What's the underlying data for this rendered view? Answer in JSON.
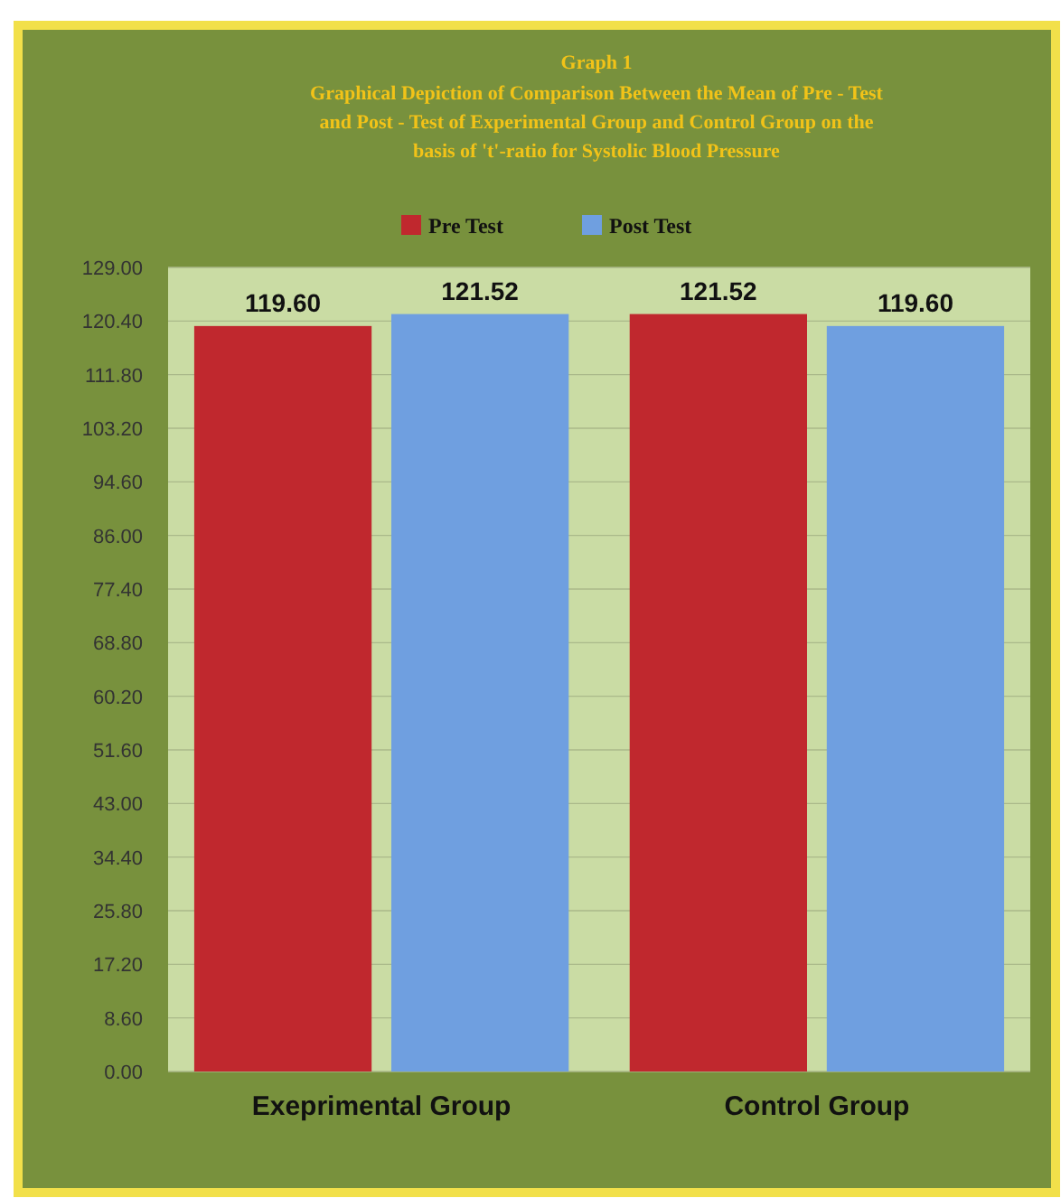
{
  "chart_data": {
    "type": "bar",
    "title": "Graph 1",
    "subtitle": "Graphical Depiction of Comparison Between the Mean of Pre - Test and Post - Test of Experimental Group and Control Group on the basis of 't'-ratio for Systolic Blood Pressure",
    "categories": [
      "Exeprimental Group",
      "Control Group"
    ],
    "series": [
      {
        "name": "Pre Test",
        "color": "#c0282e",
        "values": [
          119.6,
          121.52
        ],
        "value_labels": [
          "119.60",
          "121.52"
        ]
      },
      {
        "name": "Post Test",
        "color": "#6f9fe0",
        "values": [
          121.52,
          119.6
        ],
        "value_labels": [
          "121.52",
          "119.60"
        ]
      }
    ],
    "ylim": [
      0,
      129
    ],
    "yticks": [
      {
        "value": 0,
        "label": "0.00"
      },
      {
        "value": 8.6,
        "label": "8.60"
      },
      {
        "value": 17.2,
        "label": "17.20"
      },
      {
        "value": 25.8,
        "label": "25.80"
      },
      {
        "value": 34.4,
        "label": "34.40"
      },
      {
        "value": 43,
        "label": "43.00"
      },
      {
        "value": 51.6,
        "label": "51.60"
      },
      {
        "value": 60.2,
        "label": "60.20"
      },
      {
        "value": 68.8,
        "label": "68.80"
      },
      {
        "value": 77.4,
        "label": "77.40"
      },
      {
        "value": 86,
        "label": "86.00"
      },
      {
        "value": 94.6,
        "label": "94.60"
      },
      {
        "value": 103.2,
        "label": "103.20"
      },
      {
        "value": 111.8,
        "label": "111.80"
      },
      {
        "value": 120.4,
        "label": "120.40"
      },
      {
        "value": 129,
        "label": "129.00"
      }
    ],
    "grid": "y",
    "legend": "top"
  }
}
